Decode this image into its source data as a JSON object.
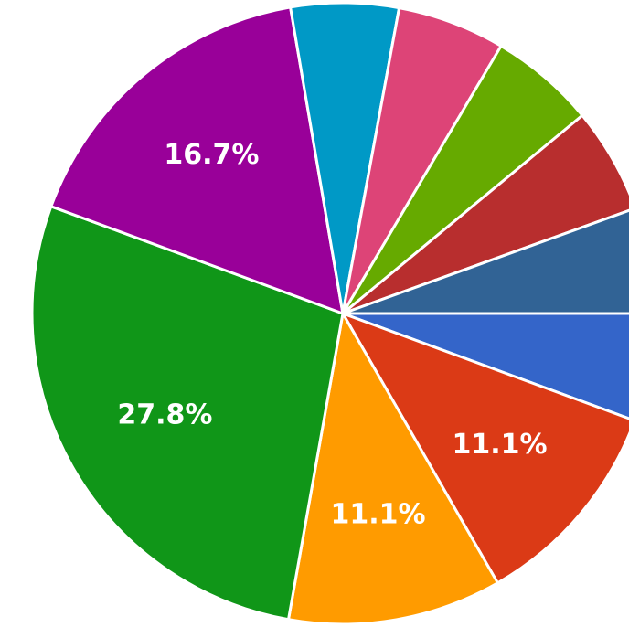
{
  "chart_data": {
    "type": "pie",
    "title": "",
    "slices": [
      {
        "value": 5.6,
        "color": "#3465c9"
      },
      {
        "value": 11.1,
        "color": "#db3a16",
        "label": "11.1%"
      },
      {
        "value": 11.1,
        "color": "#ff9b00",
        "label": "11.1%"
      },
      {
        "value": 27.8,
        "color": "#109618",
        "label": "27.8%"
      },
      {
        "value": 16.7,
        "color": "#990099",
        "label": "16.7%"
      },
      {
        "value": 5.6,
        "color": "#0099c6"
      },
      {
        "value": 5.6,
        "color": "#dd4477"
      },
      {
        "value": 5.5,
        "color": "#66aa00"
      },
      {
        "value": 5.5,
        "color": "#b82e2e"
      },
      {
        "value": 5.5,
        "color": "#316395"
      }
    ]
  }
}
